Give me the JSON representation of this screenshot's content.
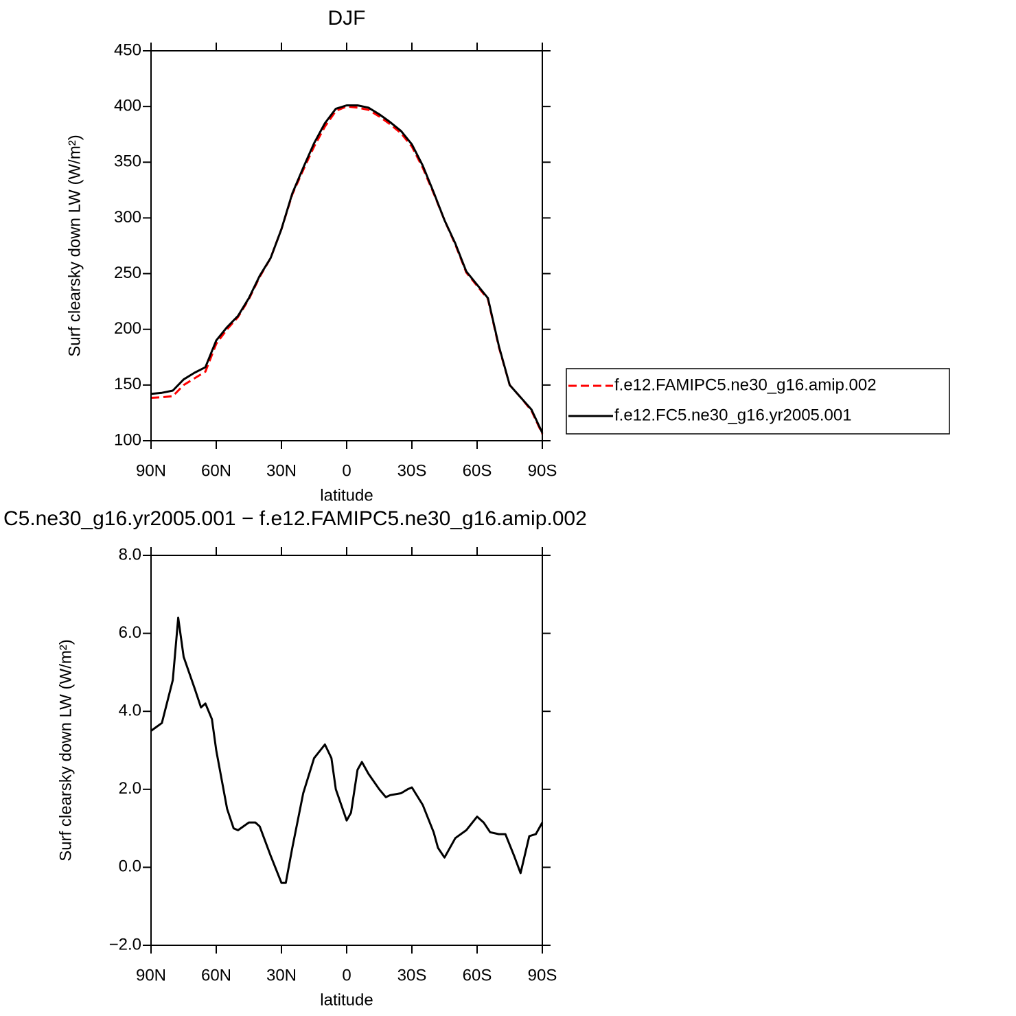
{
  "chart_data": [
    {
      "type": "line",
      "title": "DJF",
      "xlabel": "latitude",
      "ylabel": "Surf clearsky down LW (W/m²)",
      "x": [
        90,
        85,
        80,
        75,
        70,
        65,
        60,
        55,
        50,
        45,
        40,
        35,
        30,
        25,
        20,
        15,
        10,
        5,
        0,
        -5,
        -10,
        -15,
        -20,
        -25,
        -30,
        -35,
        -40,
        -45,
        -50,
        -55,
        -60,
        -65,
        -70,
        -75,
        -80,
        -85,
        -90
      ],
      "series": [
        {
          "name": "f.e12.FAMIPC5.ne30_g16.amip.002",
          "color": "#ff0000",
          "line_style": "dashed",
          "values": [
            138.5,
            139,
            140,
            150,
            156,
            162,
            187,
            200,
            211,
            227,
            247,
            264,
            290,
            321,
            343,
            364,
            382,
            396,
            400,
            399,
            397,
            391,
            384,
            376,
            364,
            345,
            322,
            298,
            276,
            251,
            239,
            227,
            184,
            150,
            139,
            127,
            106
          ]
        },
        {
          "name": "f.e12.FC5.ne30_g16.yr2005.001",
          "color": "#000000",
          "line_style": "solid",
          "values": [
            142,
            143,
            145,
            155,
            161,
            166,
            190,
            202,
            212,
            228,
            248,
            264,
            290,
            322,
            345,
            367,
            385,
            398,
            401,
            401,
            399,
            393,
            386,
            378,
            366,
            347,
            323,
            298,
            277,
            252,
            240,
            228,
            185,
            150,
            139,
            128,
            107
          ]
        }
      ],
      "xlim": [
        90,
        -90
      ],
      "xticks": [
        {
          "value": 90,
          "label": "90N"
        },
        {
          "value": 60,
          "label": "60N"
        },
        {
          "value": 30,
          "label": "30N"
        },
        0,
        {
          "value": -30,
          "label": "30S"
        },
        {
          "value": -60,
          "label": "60S"
        },
        {
          "value": -90,
          "label": "90S"
        }
      ],
      "ylim": [
        100,
        450
      ],
      "yticks": [
        100,
        150,
        200,
        250,
        300,
        350,
        400,
        450
      ],
      "legend": "right"
    },
    {
      "type": "line",
      "title": "C5.ne30_g16.yr2005.001 − f.e12.FAMIPC5.ne30_g16.amip.002",
      "xlabel": "latitude",
      "ylabel": "Surf clearsky down LW (W/m²)",
      "x": [
        90,
        85,
        80,
        77.5,
        75,
        70,
        67,
        65,
        62,
        60,
        55,
        52,
        50,
        45,
        42,
        40,
        35,
        30,
        28,
        25,
        20,
        15,
        10,
        7,
        5,
        0,
        -2,
        -5,
        -7,
        -10,
        -15,
        -18,
        -20,
        -25,
        -28,
        -30,
        -35,
        -40,
        -42,
        -45,
        -50,
        -55,
        -60,
        -63,
        -66,
        -70,
        -73,
        -77,
        -80,
        -84,
        -87,
        -90
      ],
      "series": [
        {
          "color": "#000000",
          "line_style": "solid",
          "values": [
            3.5,
            3.7,
            4.8,
            6.4,
            5.4,
            4.6,
            4.1,
            4.2,
            3.8,
            3.0,
            1.5,
            1.0,
            0.95,
            1.15,
            1.15,
            1.05,
            0.3,
            -0.4,
            -0.4,
            0.5,
            1.9,
            2.8,
            3.15,
            2.8,
            2.0,
            1.2,
            1.4,
            2.5,
            2.7,
            2.4,
            2.0,
            1.8,
            1.85,
            1.9,
            2.0,
            2.05,
            1.6,
            0.9,
            0.5,
            0.25,
            0.75,
            0.95,
            1.3,
            1.15,
            0.9,
            0.85,
            0.85,
            0.3,
            -0.15,
            0.8,
            0.85,
            1.15
          ]
        }
      ],
      "xlim": [
        90,
        -90
      ],
      "xticks": [
        {
          "value": 90,
          "label": "90N"
        },
        {
          "value": 60,
          "label": "60N"
        },
        {
          "value": 30,
          "label": "30N"
        },
        0,
        {
          "value": -30,
          "label": "30S"
        },
        {
          "value": -60,
          "label": "60S"
        },
        {
          "value": -90,
          "label": "90S"
        }
      ],
      "ylim": [
        -2,
        8
      ],
      "yticks": [
        {
          "value": -2,
          "label": "−2.0"
        },
        {
          "value": 0,
          "label": "0.0"
        },
        {
          "value": 2,
          "label": "2.0"
        },
        {
          "value": 4,
          "label": "4.0"
        },
        {
          "value": 6,
          "label": "6.0"
        },
        {
          "value": 8,
          "label": "8.0"
        }
      ]
    }
  ]
}
